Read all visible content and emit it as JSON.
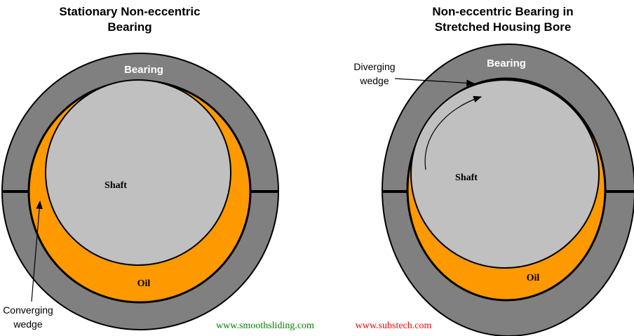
{
  "left": {
    "title": [
      "Stationary Non-eccentric",
      "Bearing"
    ],
    "bearing": "Bearing",
    "shaft": "Shaft",
    "oil": "Oil",
    "wedge": [
      "Converging",
      "wedge"
    ]
  },
  "right": {
    "title": [
      "Non-eccentric Bearing in",
      "Stretched Housing Bore"
    ],
    "bearing": "Bearing",
    "shaft": "Shaft",
    "oil": "Oil",
    "wedge": [
      "Diverging",
      "wedge"
    ]
  },
  "footer": {
    "left_url": "www.smoothsliding.com",
    "right_url": "www.substech.com"
  }
}
